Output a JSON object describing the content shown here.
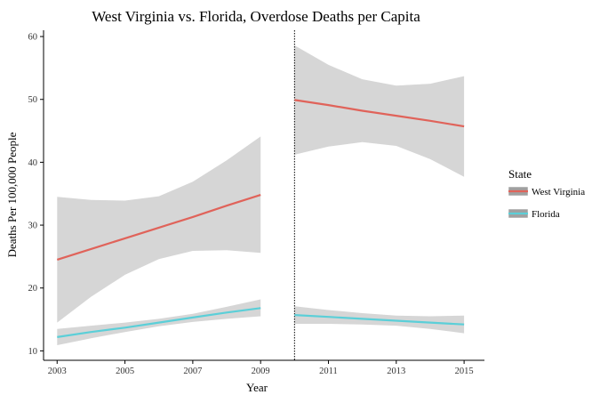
{
  "chart_data": {
    "type": "line",
    "title": "West Virginia vs. Florida, Overdose Deaths per Capita",
    "xlabel": "Year",
    "ylabel": "Deaths Per 100,000 People",
    "xlim": [
      2002.6,
      2015.6
    ],
    "ylim": [
      8.5,
      61
    ],
    "xticks": [
      2003,
      2005,
      2007,
      2009,
      2011,
      2013,
      2015
    ],
    "yticks": [
      10,
      20,
      30,
      40,
      50,
      60
    ],
    "vline": {
      "x": 2010,
      "style": "dotted",
      "color": "#000000"
    },
    "grid": false,
    "legend": {
      "title": "State",
      "placement": "right"
    },
    "band_color": "#d6d6d6",
    "series": [
      {
        "name": "West Virginia",
        "color": "#e0635a",
        "segments": [
          {
            "x": [
              2003,
              2004,
              2005,
              2006,
              2007,
              2008,
              2009
            ],
            "y": [
              24.5,
              26.2,
              27.9,
              29.6,
              31.3,
              33.1,
              34.8
            ],
            "lower": [
              14.5,
              18.6,
              22.1,
              24.6,
              25.9,
              26.0,
              25.6
            ],
            "upper": [
              34.5,
              34.0,
              33.9,
              34.6,
              36.9,
              40.3,
              44.1
            ]
          },
          {
            "x": [
              2010,
              2011,
              2012,
              2013,
              2014,
              2015
            ],
            "y": [
              49.9,
              49.1,
              48.2,
              47.4,
              46.6,
              45.7
            ],
            "lower": [
              41.2,
              42.5,
              43.2,
              42.6,
              40.5,
              37.7
            ],
            "upper": [
              58.6,
              55.5,
              53.2,
              52.2,
              52.5,
              53.7
            ]
          }
        ]
      },
      {
        "name": "Florida",
        "color": "#5bcfd8",
        "segments": [
          {
            "x": [
              2003,
              2004,
              2005,
              2006,
              2007,
              2008,
              2009
            ],
            "y": [
              12.2,
              13.0,
              13.7,
              14.5,
              15.3,
              16.1,
              16.8
            ],
            "lower": [
              10.9,
              12.0,
              13.0,
              13.9,
              14.6,
              15.1,
              15.5
            ],
            "upper": [
              13.5,
              14.0,
              14.5,
              15.1,
              15.9,
              17.0,
              18.2
            ]
          },
          {
            "x": [
              2010,
              2011,
              2012,
              2013,
              2014,
              2015
            ],
            "y": [
              15.7,
              15.4,
              15.1,
              14.8,
              14.5,
              14.2
            ],
            "lower": [
              14.3,
              14.3,
              14.2,
              14.0,
              13.5,
              12.8
            ],
            "upper": [
              17.1,
              16.5,
              16.0,
              15.6,
              15.5,
              15.6
            ]
          }
        ]
      }
    ]
  }
}
